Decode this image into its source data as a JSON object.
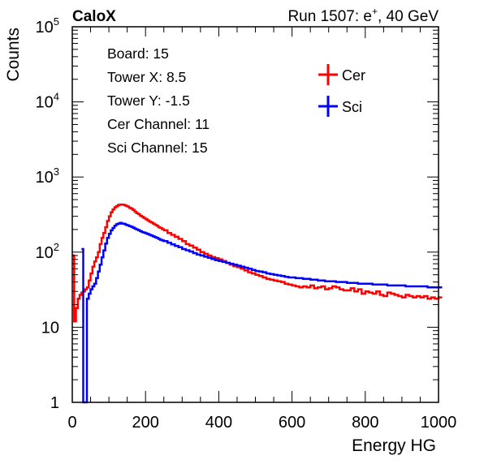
{
  "chart_data": {
    "type": "line",
    "brand": "CaloX",
    "run_text": "Run 1507: e",
    "run_sup": "+",
    "run_suffix": ", 40 GeV",
    "xlabel": "Energy HG",
    "ylabel": "Counts",
    "xlim": [
      0,
      1000
    ],
    "ylim": [
      1,
      100000
    ],
    "log_y": true,
    "grid": false,
    "x_ticks": [
      "0",
      "200",
      "400",
      "600",
      "800",
      "1000"
    ],
    "y_ticks": [
      {
        "base": "1",
        "exp": ""
      },
      {
        "base": "10",
        "exp": ""
      },
      {
        "base": "10",
        "exp": "2"
      },
      {
        "base": "10",
        "exp": "3"
      },
      {
        "base": "10",
        "exp": "4"
      },
      {
        "base": "10",
        "exp": "5"
      }
    ],
    "info_lines": [
      "Board: 15",
      "Tower X: 8.5",
      "Tower Y: -1.5",
      "Cer Channel: 11",
      "Sci Channel: 15"
    ],
    "legend_placement": "top-right",
    "series": [
      {
        "name": "Cer",
        "color": "#ff0000",
        "x": [
          0,
          5,
          10,
          15,
          20,
          25,
          30,
          35,
          40,
          45,
          50,
          55,
          60,
          65,
          70,
          75,
          80,
          85,
          90,
          95,
          100,
          105,
          110,
          115,
          120,
          125,
          130,
          135,
          140,
          145,
          150,
          155,
          160,
          165,
          170,
          175,
          180,
          185,
          190,
          195,
          200,
          205,
          210,
          215,
          220,
          225,
          230,
          235,
          240,
          245,
          250,
          260,
          270,
          280,
          290,
          300,
          310,
          320,
          330,
          340,
          350,
          360,
          370,
          380,
          390,
          400,
          410,
          420,
          430,
          440,
          450,
          460,
          470,
          480,
          490,
          500,
          510,
          520,
          530,
          540,
          550,
          560,
          570,
          580,
          590,
          600,
          610,
          620,
          630,
          640,
          650,
          660,
          670,
          680,
          690,
          700,
          710,
          720,
          730,
          740,
          750,
          760,
          770,
          780,
          790,
          800,
          810,
          820,
          830,
          840,
          850,
          860,
          870,
          880,
          890,
          900,
          910,
          920,
          930,
          940,
          950,
          960,
          970,
          980,
          990,
          1000
        ],
        "y": [
          90,
          12,
          18,
          24,
          27,
          29,
          30,
          32,
          34,
          42,
          52,
          64,
          75,
          85,
          100,
          128,
          155,
          180,
          215,
          260,
          300,
          340,
          370,
          395,
          410,
          425,
          430,
          430,
          425,
          415,
          405,
          390,
          380,
          365,
          345,
          330,
          320,
          305,
          295,
          285,
          275,
          265,
          255,
          248,
          240,
          232,
          225,
          215,
          210,
          202,
          195,
          180,
          170,
          160,
          150,
          140,
          128,
          122,
          115,
          108,
          100,
          95,
          90,
          86,
          83,
          80,
          76,
          72,
          68,
          65,
          63,
          60,
          57,
          54,
          52,
          50,
          48,
          46,
          44,
          43,
          42,
          41,
          40,
          38,
          37,
          36,
          35,
          34,
          35,
          34,
          36,
          33,
          34,
          35,
          32,
          33,
          35,
          34,
          32,
          31,
          31,
          33,
          30,
          32,
          28,
          30,
          29,
          28,
          30,
          27,
          26,
          29,
          28,
          27,
          26,
          25,
          27,
          26,
          25,
          26,
          25,
          26,
          24,
          25,
          24,
          25
        ]
      },
      {
        "name": "Sci",
        "color": "#0000ff",
        "x": [
          25,
          30,
          35,
          40,
          45,
          50,
          55,
          60,
          65,
          70,
          75,
          80,
          85,
          90,
          95,
          100,
          105,
          110,
          115,
          120,
          125,
          130,
          135,
          140,
          145,
          150,
          155,
          160,
          165,
          170,
          175,
          180,
          185,
          190,
          195,
          200,
          205,
          210,
          215,
          220,
          225,
          230,
          235,
          240,
          245,
          250,
          260,
          270,
          280,
          290,
          300,
          310,
          320,
          330,
          340,
          350,
          360,
          370,
          380,
          390,
          400,
          410,
          420,
          430,
          440,
          450,
          460,
          470,
          480,
          490,
          500,
          510,
          520,
          530,
          540,
          550,
          560,
          570,
          580,
          590,
          600,
          610,
          620,
          630,
          640,
          650,
          660,
          670,
          680,
          690,
          700,
          710,
          720,
          730,
          740,
          750,
          760,
          770,
          780,
          790,
          800,
          810,
          820,
          830,
          840,
          850,
          860,
          870,
          880,
          890,
          900,
          910,
          920,
          930,
          940,
          950,
          960,
          970,
          980,
          990,
          1000
        ],
        "y": [
          110,
          1,
          1,
          24,
          28,
          32,
          35,
          38,
          45,
          55,
          68,
          85,
          105,
          130,
          155,
          175,
          195,
          210,
          225,
          235,
          240,
          245,
          240,
          238,
          232,
          228,
          222,
          218,
          212,
          205,
          200,
          195,
          190,
          185,
          182,
          178,
          174,
          170,
          166,
          162,
          158,
          155,
          150,
          146,
          143,
          140,
          133,
          127,
          121,
          116,
          110,
          106,
          102,
          97,
          93,
          90,
          87,
          84,
          81,
          78,
          76,
          74,
          72,
          70,
          68,
          66,
          64,
          62,
          60,
          58,
          56,
          55,
          54,
          52,
          51,
          50,
          49,
          48,
          47,
          46,
          46,
          45,
          45,
          44,
          44,
          43,
          43,
          42,
          42,
          41,
          41,
          41,
          40,
          40,
          40,
          39,
          39,
          39,
          38,
          38,
          38,
          38,
          37,
          37,
          37,
          37,
          36,
          36,
          36,
          36,
          36,
          35,
          35,
          35,
          35,
          35,
          35,
          34,
          34,
          34,
          34
        ]
      }
    ]
  }
}
